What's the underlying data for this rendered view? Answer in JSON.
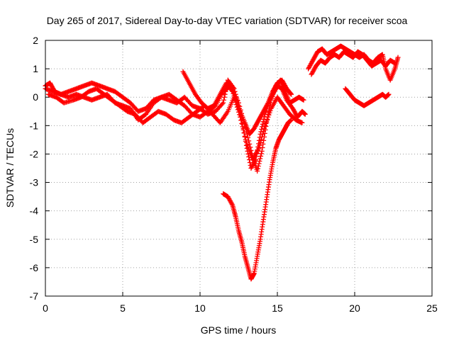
{
  "chart_data": {
    "type": "scatter",
    "title": "Day 265 of 2017, Sidereal Day-to-day VTEC variation (SDTVAR) for receiver scoa",
    "xlabel": "GPS time / hours",
    "ylabel": "SDTVAR / TECUs",
    "xlim": [
      0,
      25
    ],
    "ylim": [
      -7,
      2
    ],
    "x_ticks": [
      0,
      5,
      10,
      15,
      20,
      25
    ],
    "y_ticks": [
      -7,
      -6,
      -5,
      -4,
      -3,
      -2,
      -1,
      0,
      1,
      2
    ],
    "x_tick_labels": [
      "0",
      "5",
      "10",
      "15",
      "20",
      "25"
    ],
    "y_tick_labels": [
      "-7",
      "-6",
      "-5",
      "-4",
      "-3",
      "-2",
      "-1",
      "0",
      "1",
      "2"
    ],
    "grid": true,
    "marker": "plus",
    "marker_color": "#ff0000",
    "series": [
      {
        "x": [
          0.0,
          0.3,
          0.6,
          1.0,
          1.5,
          2.0,
          2.5,
          3.0,
          3.5,
          4.0,
          4.5,
          5.0,
          5.5,
          6.0,
          6.5,
          7.0,
          7.5,
          8.0,
          8.5,
          9.0,
          9.5,
          10.0,
          10.5,
          11.0,
          11.5,
          11.8,
          12.2,
          12.6,
          13.0,
          13.3,
          13.6,
          13.9,
          14.2,
          14.5,
          14.8,
          15.0,
          15.3,
          15.6,
          16.0,
          16.3,
          16.6,
          16.8
        ],
        "y": [
          0.4,
          0.5,
          0.2,
          0.1,
          0.0,
          0.1,
          0.0,
          -0.1,
          0.0,
          0.1,
          -0.2,
          -0.3,
          -0.4,
          -0.8,
          -0.6,
          -0.2,
          0.0,
          -0.1,
          -0.2,
          0.0,
          -0.3,
          -0.4,
          -0.6,
          -0.5,
          -0.2,
          0.6,
          0.3,
          -0.5,
          -1.7,
          -2.5,
          -2.2,
          -1.3,
          -0.6,
          -0.1,
          0.2,
          0.4,
          0.3,
          -0.1,
          -0.4,
          -0.7,
          -0.5,
          -0.6
        ]
      },
      {
        "x": [
          0.0,
          0.5,
          1.0,
          1.5,
          2.0,
          2.5,
          3.0,
          3.5,
          4.0,
          4.5,
          5.0,
          5.5,
          6.0,
          6.5,
          7.0,
          7.5,
          8.0,
          8.5,
          9.0,
          9.5,
          10.0,
          10.5,
          11.0,
          11.5,
          12.0,
          12.5,
          13.0,
          13.4,
          13.7,
          14.0,
          14.3,
          14.6,
          14.9,
          15.2,
          15.5,
          15.8,
          16.1,
          16.4,
          16.7
        ],
        "y": [
          0.3,
          0.2,
          0.1,
          0.2,
          0.3,
          0.4,
          0.5,
          0.4,
          0.3,
          0.2,
          0.0,
          -0.2,
          -0.5,
          -0.4,
          -0.1,
          0.0,
          0.1,
          -0.1,
          -0.3,
          -0.6,
          -0.7,
          -0.5,
          -0.3,
          0.2,
          0.4,
          -0.2,
          -1.2,
          -2.1,
          -2.6,
          -1.9,
          -0.9,
          -0.1,
          0.4,
          0.6,
          0.2,
          -0.2,
          -0.1,
          0.0,
          -0.1
        ]
      },
      {
        "x": [
          0.2,
          0.7,
          1.2,
          1.8,
          2.3,
          2.8,
          3.3,
          3.8,
          4.3,
          4.8,
          5.3,
          5.8,
          6.3,
          6.8,
          7.3,
          7.8,
          8.3,
          8.8,
          9.3,
          9.8,
          10.3,
          10.8,
          11.3,
          11.8,
          12.2,
          12.6,
          13.0,
          13.4,
          13.8,
          14.2,
          14.6,
          15.0,
          15.4,
          15.8,
          16.2,
          16.6
        ],
        "y": [
          0.1,
          0.0,
          -0.2,
          -0.1,
          0.0,
          0.2,
          0.3,
          0.1,
          -0.1,
          -0.3,
          -0.5,
          -0.6,
          -0.9,
          -0.7,
          -0.5,
          -0.6,
          -0.8,
          -0.9,
          -0.7,
          -0.5,
          -0.3,
          -0.6,
          -0.9,
          -0.5,
          0.0,
          -0.7,
          -1.6,
          -2.2,
          -1.8,
          -1.0,
          -0.4,
          0.0,
          -0.3,
          -0.6,
          -0.8,
          -0.9
        ]
      },
      {
        "x": [
          8.9,
          9.3,
          9.7,
          10.1,
          10.5,
          10.9,
          11.3,
          11.7,
          12.1,
          12.5,
          12.9,
          13.2,
          13.5,
          13.8,
          14.1,
          14.4,
          14.7,
          15.0,
          15.3,
          15.6,
          15.9
        ],
        "y": [
          0.9,
          0.5,
          0.1,
          -0.2,
          -0.4,
          -0.3,
          0.1,
          0.5,
          0.2,
          -0.4,
          -0.9,
          -1.3,
          -1.1,
          -0.8,
          -0.5,
          -0.2,
          0.2,
          0.5,
          0.6,
          0.3,
          0.1
        ]
      },
      {
        "x": [
          11.5,
          11.8,
          12.1,
          12.3,
          12.5,
          12.7,
          12.9,
          13.1,
          13.3,
          13.5,
          13.7,
          13.9,
          14.1,
          14.3,
          14.5,
          14.7,
          14.9,
          15.1,
          15.3,
          15.5,
          15.7,
          15.9
        ],
        "y": [
          -3.4,
          -3.5,
          -3.8,
          -4.2,
          -4.7,
          -5.1,
          -5.6,
          -6.0,
          -6.4,
          -6.2,
          -5.6,
          -5.0,
          -4.3,
          -3.6,
          -2.9,
          -2.3,
          -1.8,
          -1.5,
          -1.3,
          -1.1,
          -0.9,
          -0.8
        ]
      },
      {
        "x": [
          17.0,
          17.3,
          17.6,
          17.9,
          18.2,
          18.5,
          18.8,
          19.1,
          19.4,
          19.7,
          20.0,
          20.3,
          20.6,
          20.9,
          21.2,
          21.5,
          21.8,
          22.0,
          22.3,
          22.6,
          22.8
        ],
        "y": [
          1.0,
          1.3,
          1.6,
          1.7,
          1.5,
          1.6,
          1.7,
          1.8,
          1.7,
          1.6,
          1.5,
          1.4,
          1.5,
          1.3,
          1.2,
          1.4,
          1.5,
          1.0,
          0.6,
          1.0,
          1.4
        ]
      },
      {
        "x": [
          17.2,
          17.5,
          17.8,
          18.1,
          18.4,
          18.7,
          19.0,
          19.3,
          19.6,
          19.9,
          20.2,
          20.5,
          20.8,
          21.1,
          21.4,
          21.7,
          22.0,
          22.3,
          22.6
        ],
        "y": [
          0.8,
          1.1,
          1.3,
          1.2,
          1.4,
          1.5,
          1.4,
          1.6,
          1.5,
          1.4,
          1.6,
          1.5,
          1.3,
          1.1,
          1.2,
          1.3,
          1.1,
          1.3,
          1.2
        ]
      },
      {
        "x": [
          19.4,
          19.7,
          20.0,
          20.3,
          20.6,
          20.9,
          21.2,
          21.5,
          21.8,
          22.0,
          22.2
        ],
        "y": [
          0.3,
          0.1,
          -0.1,
          -0.2,
          -0.3,
          -0.2,
          -0.1,
          0.0,
          0.1,
          0.0,
          0.1
        ]
      }
    ]
  }
}
